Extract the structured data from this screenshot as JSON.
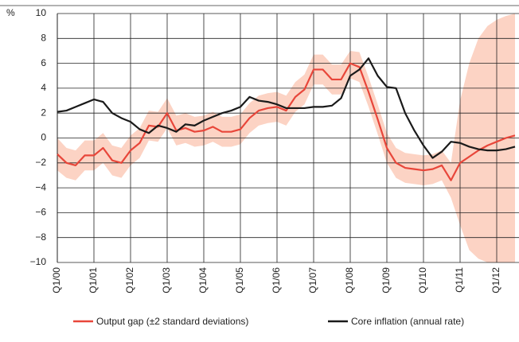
{
  "chart_data": {
    "type": "line",
    "unit_label": "%",
    "categories": [
      "Q1/00",
      null,
      null,
      null,
      "Q1/01",
      null,
      null,
      null,
      "Q1/02",
      null,
      null,
      null,
      "Q1/03",
      null,
      null,
      null,
      "Q1/04",
      null,
      null,
      null,
      "Q1/05",
      null,
      null,
      null,
      "Q1/06",
      null,
      null,
      null,
      "Q1/07",
      null,
      null,
      null,
      "Q1/08",
      null,
      null,
      null,
      "Q1/09",
      null,
      null,
      null,
      "Q1/10",
      null,
      null,
      null,
      "Q1/11",
      null,
      null,
      null,
      "Q1/12",
      null,
      null
    ],
    "band": {
      "color": "#fcd3c4",
      "upper": [
        0.0,
        -0.8,
        -1.0,
        -0.2,
        -0.2,
        0.4,
        -0.6,
        -0.8,
        0.2,
        0.8,
        2.2,
        2.1,
        3.2,
        1.8,
        2.0,
        1.7,
        1.8,
        2.1,
        1.7,
        1.7,
        1.9,
        2.8,
        3.4,
        3.6,
        3.7,
        3.4,
        4.5,
        5.1,
        6.7,
        6.7,
        5.9,
        5.9,
        7.0,
        6.9,
        4.9,
        2.7,
        0.4,
        -0.8,
        -1.2,
        -1.3,
        -1.4,
        -1.3,
        -1.0,
        -2.0,
        3.0,
        6.0,
        8.0,
        9.0,
        9.5,
        9.8,
        10.0
      ],
      "lower": [
        -2.6,
        -3.2,
        -3.4,
        -2.6,
        -2.6,
        -2.0,
        -3.0,
        -3.2,
        -2.2,
        -1.6,
        -0.2,
        -0.3,
        0.8,
        -0.6,
        -0.4,
        -0.7,
        -0.6,
        -0.3,
        -0.7,
        -0.7,
        -0.5,
        0.4,
        1.0,
        1.2,
        1.3,
        1.0,
        2.1,
        2.7,
        4.3,
        4.3,
        3.5,
        3.5,
        4.8,
        4.5,
        2.5,
        0.3,
        -2.0,
        -3.2,
        -3.6,
        -3.7,
        -3.8,
        -3.7,
        -3.4,
        -4.8,
        -7.0,
        -9.0,
        -9.7,
        -10.0,
        -10.0,
        -10.0,
        -10.0
      ]
    },
    "series": [
      {
        "name": "Output gap (±2 standard deviations)",
        "color": "#e8463a",
        "values": [
          -1.3,
          -2.0,
          -2.2,
          -1.4,
          -1.4,
          -0.8,
          -1.8,
          -2.0,
          -1.0,
          -0.4,
          1.0,
          0.9,
          2.0,
          0.6,
          0.8,
          0.5,
          0.6,
          0.9,
          0.5,
          0.5,
          0.7,
          1.6,
          2.2,
          2.4,
          2.5,
          2.2,
          3.3,
          3.9,
          5.5,
          5.5,
          4.7,
          4.7,
          6.0,
          5.7,
          3.7,
          1.5,
          -0.8,
          -2.0,
          -2.4,
          -2.5,
          -2.6,
          -2.5,
          -2.2,
          -3.4,
          -2.0,
          -1.5,
          -1.0,
          -0.6,
          -0.3,
          0.0,
          0.2
        ]
      },
      {
        "name": "Core inflation (annual rate)",
        "color": "#1a1a1a",
        "values": [
          2.1,
          2.2,
          2.5,
          2.8,
          3.1,
          2.9,
          2.0,
          1.6,
          1.3,
          0.7,
          0.4,
          1.0,
          0.8,
          0.5,
          1.1,
          1.0,
          1.4,
          1.7,
          2.0,
          2.2,
          2.5,
          3.3,
          3.0,
          2.9,
          2.7,
          2.4,
          2.4,
          2.4,
          2.5,
          2.5,
          2.6,
          3.2,
          5.0,
          5.5,
          6.4,
          5.0,
          4.1,
          4.0,
          2.0,
          0.6,
          -0.6,
          -1.6,
          -1.1,
          -0.3,
          -0.4,
          -0.7,
          -0.9,
          -1.0,
          -1.0,
          -0.9,
          -0.7
        ]
      }
    ],
    "ylim": [
      -10,
      10
    ],
    "yticks": [
      {
        "value": -10,
        "label": "−10"
      },
      {
        "value": -8,
        "label": "−8"
      },
      {
        "value": -6,
        "label": "−6"
      },
      {
        "value": -4,
        "label": "−4"
      },
      {
        "value": -2,
        "label": "−2"
      },
      0,
      2,
      4,
      6,
      8,
      10
    ],
    "grid": true
  }
}
